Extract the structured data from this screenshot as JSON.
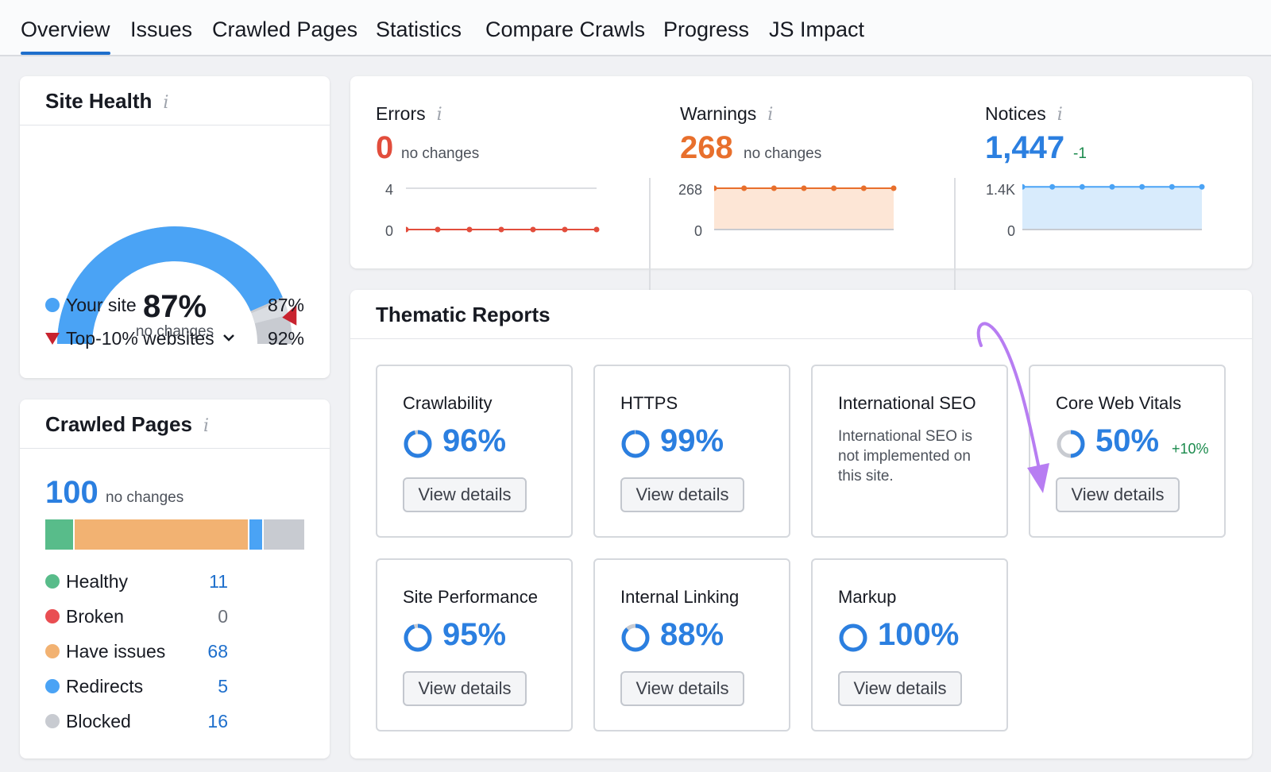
{
  "tabs": [
    {
      "label": "Overview",
      "active": true
    },
    {
      "label": "Issues"
    },
    {
      "label": "Crawled Pages"
    },
    {
      "label": "Statistics"
    },
    {
      "label": "Compare Crawls"
    },
    {
      "label": "Progress"
    },
    {
      "label": "JS Impact"
    }
  ],
  "site_health": {
    "title": "Site Health",
    "info_glyph": "i",
    "percent": "87%",
    "percent_value": 87,
    "benchmark_value": 92,
    "status": "no changes",
    "legend": [
      {
        "label": "Your site",
        "value": "87%",
        "color": "#4aa3f5",
        "marker": "dot"
      },
      {
        "label": "Top-10% websites",
        "value": "92%",
        "color": "#c8232f",
        "marker": "triangle",
        "has_dropdown": true
      }
    ]
  },
  "crawled_pages": {
    "title": "Crawled Pages",
    "info_glyph": "i",
    "total": "100",
    "status": "no changes",
    "segments": [
      {
        "label": "Healthy",
        "value": 11,
        "display": "11",
        "color": "#58bc8a"
      },
      {
        "label": "Broken",
        "value": 0,
        "display": "0",
        "color": "#e94e52"
      },
      {
        "label": "Have issues",
        "value": 68,
        "display": "68",
        "color": "#f2b272"
      },
      {
        "label": "Redirects",
        "value": 5,
        "display": "5",
        "color": "#4aa3f5"
      },
      {
        "label": "Blocked",
        "value": 16,
        "display": "16",
        "color": "#c8cbd1"
      }
    ]
  },
  "issues": {
    "errors": {
      "label": "Errors",
      "value": "0",
      "change": "no changes",
      "color": "#e24d3c",
      "ticks": [
        "4",
        "0"
      ]
    },
    "warnings": {
      "label": "Warnings",
      "value": "268",
      "change": "no changes",
      "color": "#e86f2c",
      "ticks": [
        "268",
        "0"
      ]
    },
    "notices": {
      "label": "Notices",
      "value": "1,447",
      "change": "-1",
      "color": "#2b7fe0",
      "change_color": "#1a8a4c",
      "ticks": [
        "1.4K",
        "0"
      ]
    }
  },
  "chart_data": [
    {
      "type": "line",
      "title": "Errors",
      "x": [
        1,
        2,
        3,
        4,
        5,
        6,
        7
      ],
      "ylim": [
        0,
        4
      ],
      "ticks": [
        "4",
        "0"
      ],
      "series": [
        {
          "values": [
            0,
            0,
            0,
            0,
            0,
            0,
            0
          ],
          "color": "#e24d3c"
        }
      ]
    },
    {
      "type": "area",
      "title": "Warnings",
      "x": [
        1,
        2,
        3,
        4,
        5,
        6,
        7
      ],
      "ylim": [
        0,
        268
      ],
      "ticks": [
        "268",
        "0"
      ],
      "series": [
        {
          "values": [
            268,
            268,
            268,
            268,
            268,
            268,
            268
          ],
          "color": "#e86f2c"
        }
      ]
    },
    {
      "type": "area",
      "title": "Notices",
      "x": [
        1,
        2,
        3,
        4,
        5,
        6,
        7
      ],
      "ylim": [
        0,
        1400
      ],
      "ticks": [
        "1.4K",
        "0"
      ],
      "series": [
        {
          "values": [
            1448,
            1448,
            1446,
            1448,
            1447,
            1448,
            1447
          ],
          "color": "#4aa3f5"
        }
      ]
    }
  ],
  "thematic": {
    "title": "Thematic Reports",
    "button_label": "View details",
    "reports": [
      {
        "title": "Crawlability",
        "percent": "96%",
        "value": 96
      },
      {
        "title": "HTTPS",
        "percent": "99%",
        "value": 99
      },
      {
        "title": "International SEO",
        "message": "International SEO is not implemented on this site."
      },
      {
        "title": "Core Web Vitals",
        "percent": "50%",
        "value": 50,
        "delta": "+10%"
      },
      {
        "title": "Site Performance",
        "percent": "95%",
        "value": 95
      },
      {
        "title": "Internal Linking",
        "percent": "88%",
        "value": 88
      },
      {
        "title": "Markup",
        "percent": "100%",
        "value": 100
      }
    ]
  },
  "colors": {
    "accent": "#1e6fcc",
    "arrow": "#b77df2",
    "ring": "#2b7fe0",
    "ring_track": "#c8cbd1"
  }
}
